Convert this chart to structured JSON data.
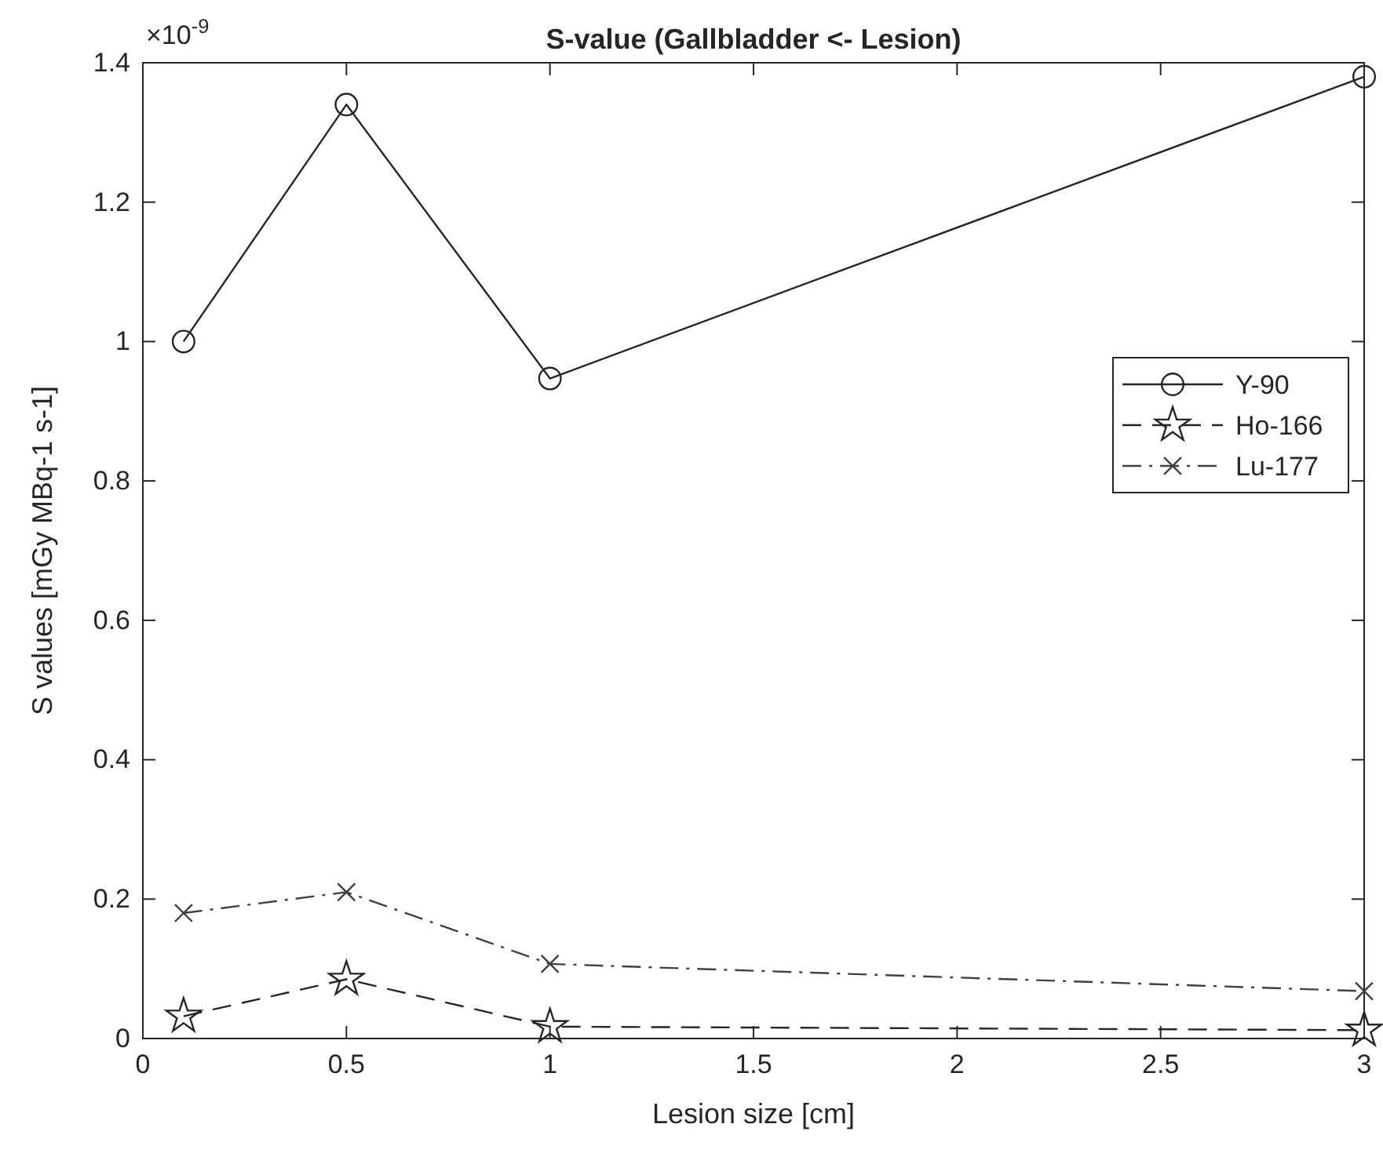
{
  "chart_data": {
    "type": "line",
    "title": "S-value (Gallbladder <- Lesion)",
    "xlabel": "Lesion size [cm]",
    "ylabel": "S values [mGy MBq-1 s-1]",
    "annotations": [
      "×10$^{-9}$"
    ],
    "x": [
      0.1,
      0.5,
      1,
      3
    ],
    "series": [
      {
        "name": "Y-90",
        "color": "#262626",
        "values": [
          1.0,
          1.34,
          0.947,
          1.38
        ],
        "marker": "circle",
        "line_style": "solid"
      },
      {
        "name": "Ho-166",
        "color": "#262626",
        "values": [
          0.032,
          0.085,
          0.017,
          0.012
        ],
        "marker": "star",
        "line_style": "dashed"
      },
      {
        "name": "Lu-177",
        "color": "#404040",
        "values": [
          0.18,
          0.21,
          0.107,
          0.068
        ],
        "marker": "cross",
        "line_style": "dashdot"
      }
    ],
    "xlim": [
      0,
      3
    ],
    "xticks": [
      0,
      0.5,
      1,
      1.5,
      2,
      2.5,
      3
    ],
    "ylim": [
      0,
      1.4
    ],
    "yticks": [
      0,
      0.2,
      0.4,
      0.6,
      0.8,
      1,
      1.2,
      1.4
    ],
    "grid": false,
    "legend": "right"
  }
}
